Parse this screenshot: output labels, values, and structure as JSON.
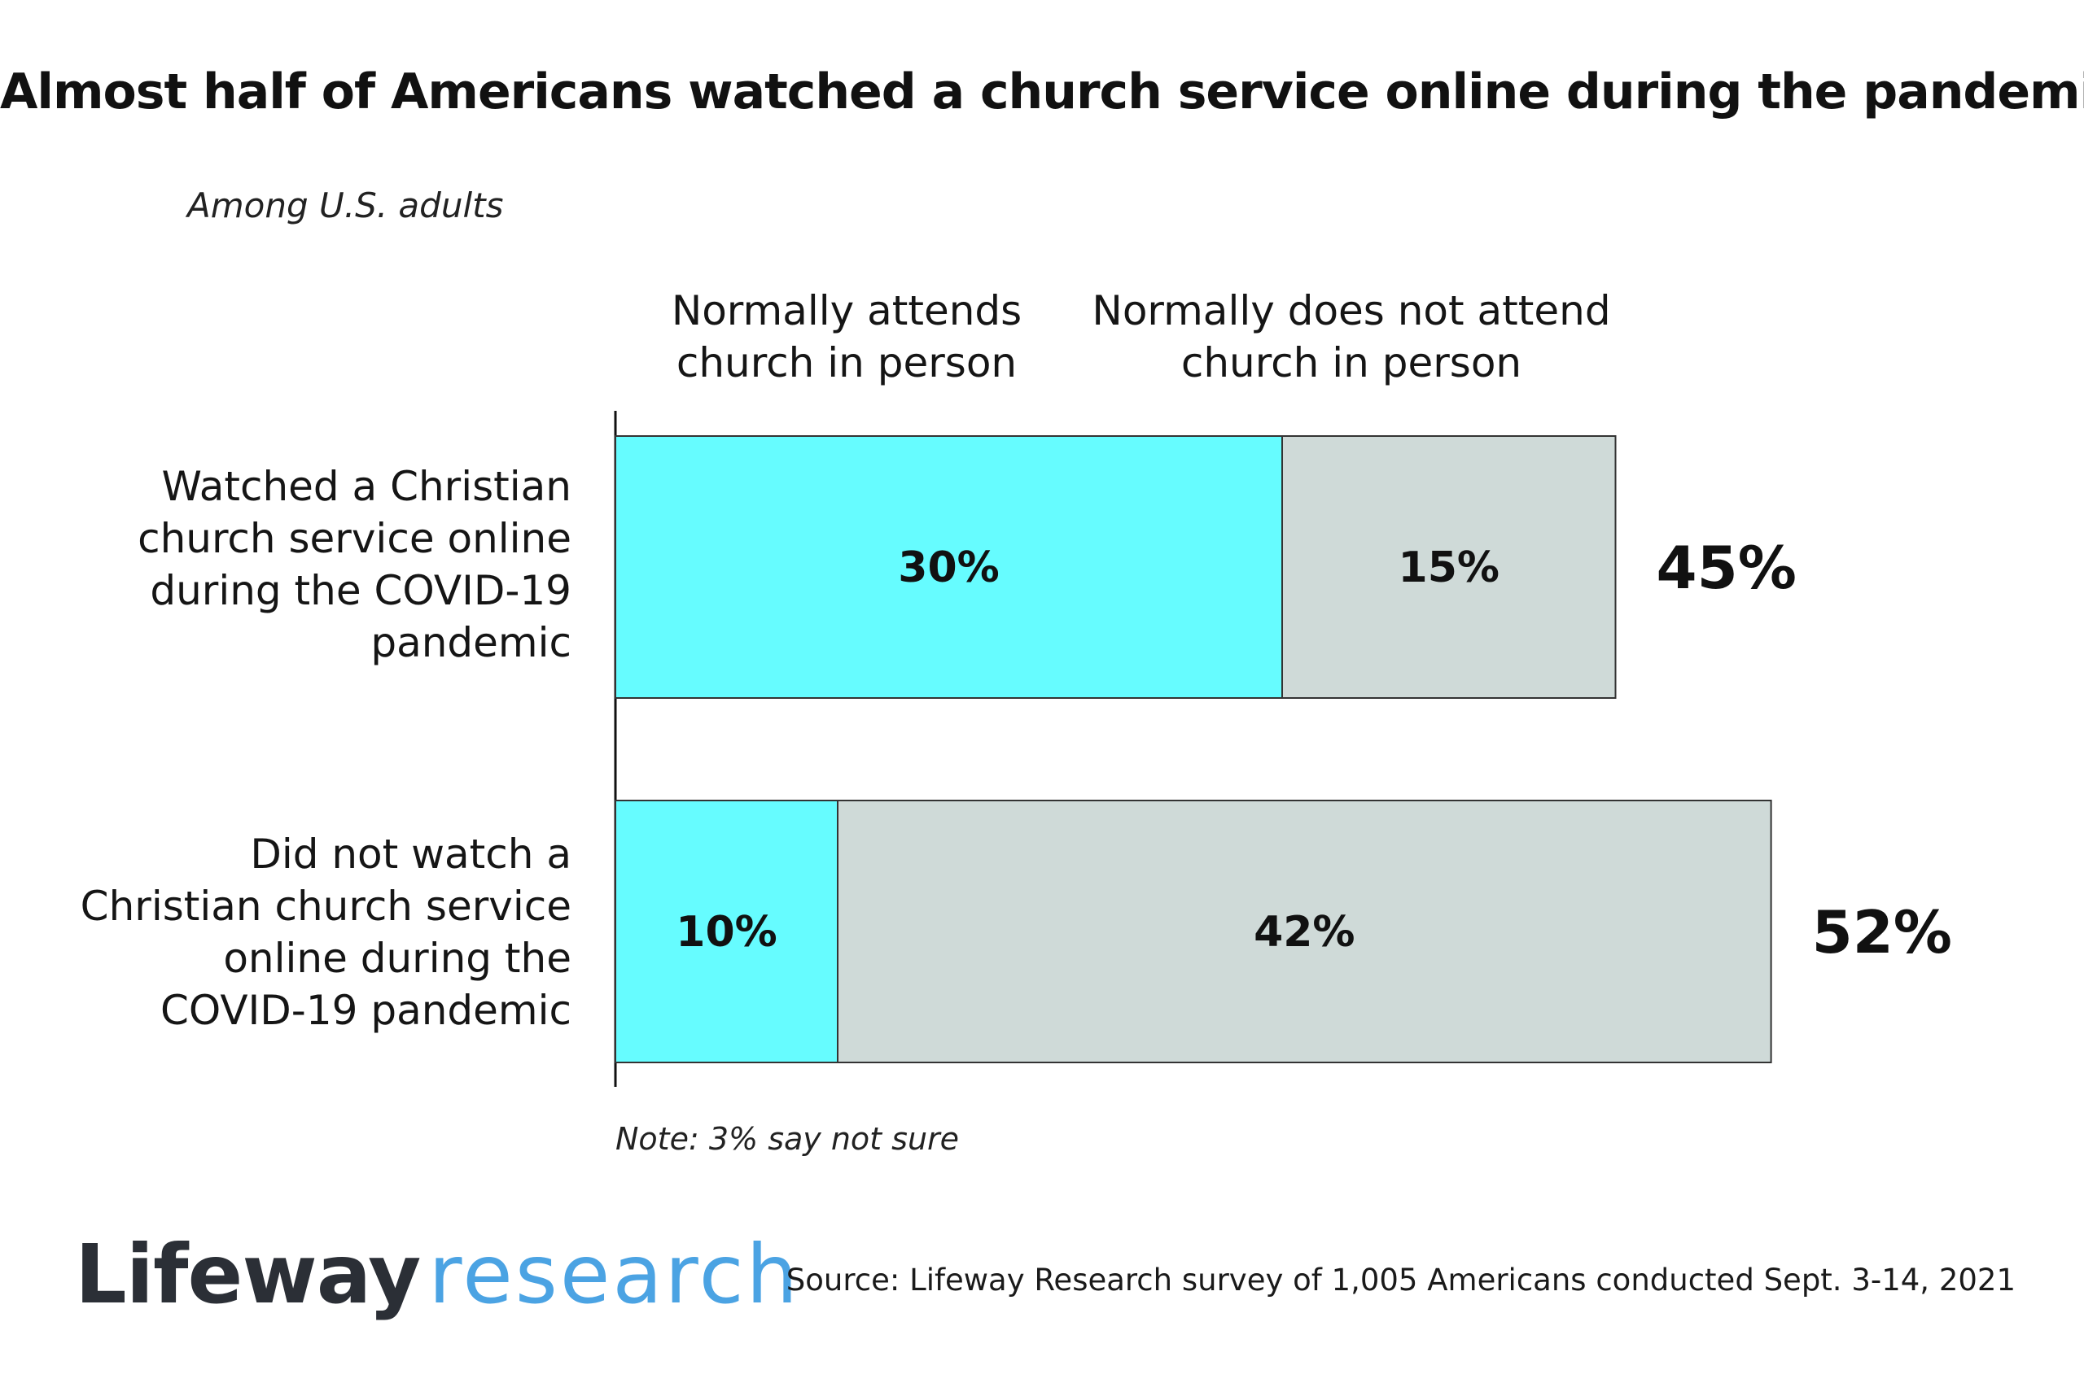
{
  "chart_data": {
    "type": "bar",
    "orientation": "horizontal",
    "stacked": true,
    "title": "Almost half of Americans watched a church service online during the pandemic",
    "subtitle": "Among U.S. adults",
    "categories": [
      [
        "Watched a Christian",
        "church service online",
        "during the COVID-19",
        "pandemic"
      ],
      [
        "Did not watch a",
        "Christian church service",
        "online during the",
        "COVID-19 pandemic"
      ]
    ],
    "series": [
      {
        "name_lines": [
          "Normally attends",
          "church in person"
        ],
        "values": [
          30,
          10
        ],
        "labels": [
          "30%",
          "10%"
        ],
        "color": "#66fcff"
      },
      {
        "name_lines": [
          "Normally does not attend",
          "church in person"
        ],
        "values": [
          15,
          42
        ],
        "labels": [
          "15%",
          "42%"
        ],
        "color": "#cfdad8"
      }
    ],
    "totals": [
      45,
      52
    ],
    "total_labels": [
      "45%",
      "52%"
    ],
    "xlim": [
      0,
      60
    ],
    "grid": false,
    "note": "Note: 3% say not sure"
  },
  "footer": {
    "logo_part1": "Lifeway",
    "logo_part2": "research",
    "logo_color": "#4ba3e3",
    "source": "Source: Lifeway Research survey of 1,005 Americans conducted Sept. 3-14, 2021"
  }
}
